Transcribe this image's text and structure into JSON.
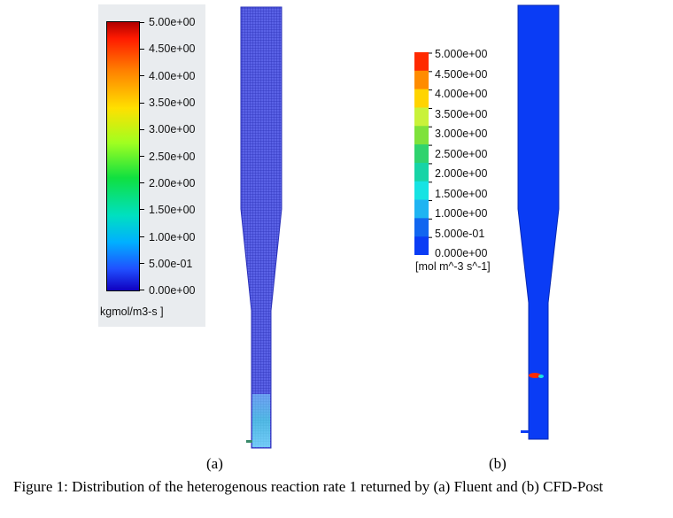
{
  "panel_a": {
    "label": "(a)",
    "legend": {
      "ticks": [
        "5.00e+00",
        "4.50e+00",
        "4.00e+00",
        "3.50e+00",
        "3.00e+00",
        "2.50e+00",
        "2.00e+00",
        "1.50e+00",
        "1.00e+00",
        "5.00e-01",
        "0.00e+00"
      ],
      "unit": "kgmol/m3-s ]"
    }
  },
  "panel_b": {
    "label": "(b)",
    "legend": {
      "ticks": [
        "5.000e+00",
        "4.500e+00",
        "4.000e+00",
        "3.500e+00",
        "3.000e+00",
        "2.500e+00",
        "2.000e+00",
        "1.500e+00",
        "1.000e+00",
        "5.000e-01",
        "0.000e+00"
      ],
      "colors": [
        "#ff2a00",
        "#ff8c00",
        "#ffd400",
        "#c9f23a",
        "#7ee23b",
        "#2fd36e",
        "#17d4a6",
        "#17e3e3",
        "#1fb4f2",
        "#1166f0",
        "#0a3cf5"
      ],
      "unit": "[mol m^-3 s^-1]"
    }
  },
  "caption": "Figure 1: Distribution of the heterogenous reaction rate 1 returned by (a) Fluent and (b) CFD-Post"
}
